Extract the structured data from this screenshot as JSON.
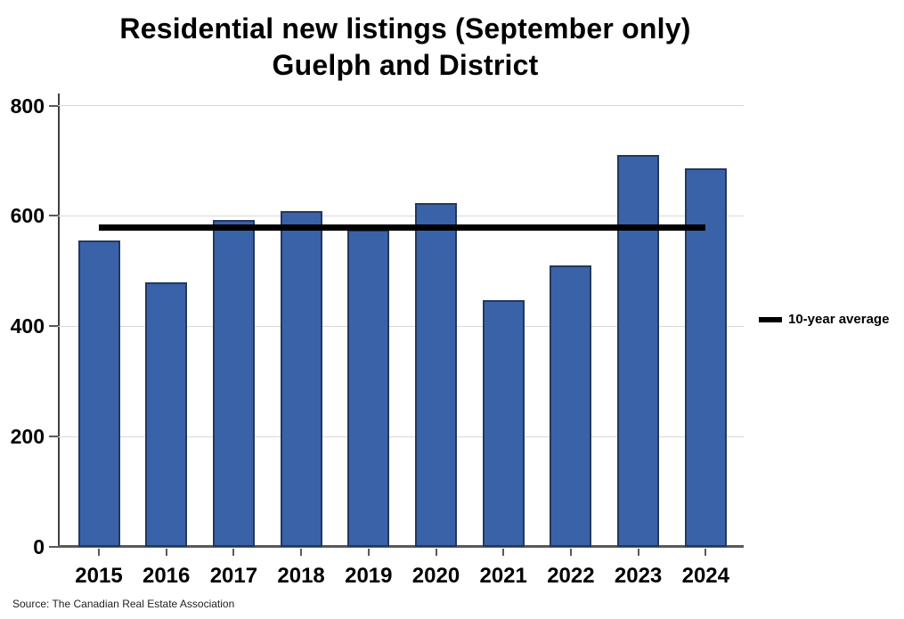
{
  "chart": {
    "title_line1": "Residential new listings (September only)",
    "title_line2": "Guelph and District",
    "legend_label": "10-year average",
    "source": "Source: The Canadian Real Estate Association"
  },
  "chart_data": {
    "type": "bar",
    "title": "Residential new listings (September only) Guelph and District",
    "categories": [
      "2015",
      "2016",
      "2017",
      "2018",
      "2019",
      "2020",
      "2021",
      "2022",
      "2023",
      "2024"
    ],
    "values": [
      556,
      480,
      592,
      608,
      574,
      624,
      448,
      511,
      711,
      686
    ],
    "average_line": {
      "label": "10-year average",
      "value": 579
    },
    "xlabel": "",
    "ylabel": "",
    "ylim": [
      0,
      800
    ],
    "yticks": [
      0,
      200,
      400,
      600,
      800
    ],
    "grid": true,
    "legend_position": "right",
    "source": "Source: The Canadian Real Estate Association",
    "colors": {
      "bar_fill": "#3A62A8",
      "bar_border": "#24385D",
      "average_line": "#000000",
      "gridline": "#D9D9D9",
      "axis": "#595959",
      "text": "#000000"
    }
  }
}
